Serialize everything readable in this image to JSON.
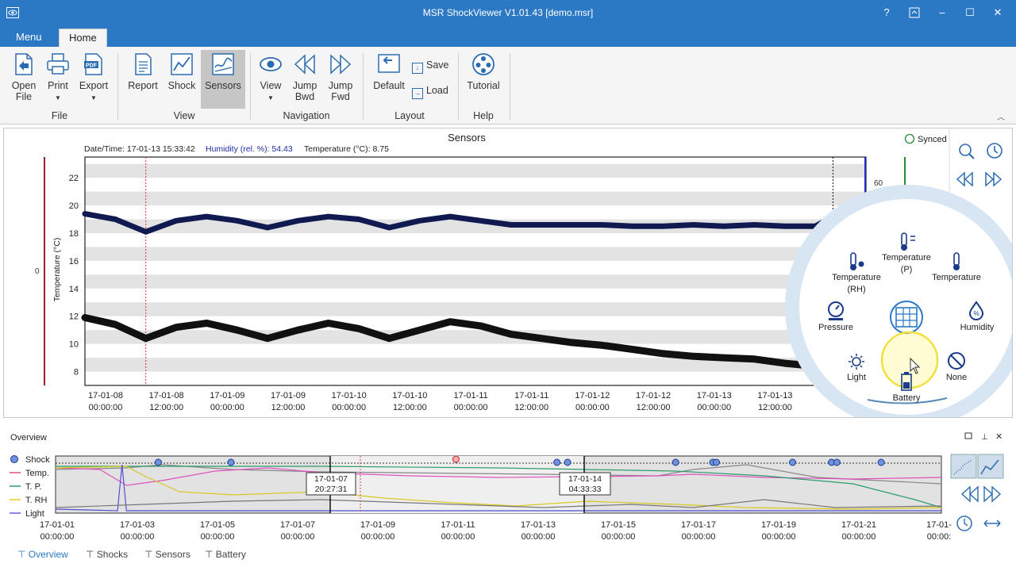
{
  "window": {
    "title": "MSR ShockViewer V1.01.43 [demo.msr]",
    "controls": {
      "help": "?",
      "minimize": "–",
      "maximize": "☐",
      "close": "✕"
    }
  },
  "ribbon": {
    "tabs": [
      "Menu",
      "Home"
    ],
    "active_tab": "Home",
    "buttons": {
      "open_line1": "Open",
      "open_line2": "File",
      "print": "Print",
      "export": "Export",
      "report": "Report",
      "shock": "Shock",
      "sensors": "Sensors",
      "view": "View",
      "jump_bwd_line1": "Jump",
      "jump_bwd_line2": "Bwd",
      "jump_fwd_line1": "Jump",
      "jump_fwd_line2": "Fwd",
      "default": "Default",
      "save": "Save",
      "load": "Load",
      "tutorial": "Tutorial"
    },
    "groups": [
      "File",
      "View",
      "Navigation",
      "Layout",
      "Help"
    ]
  },
  "sensors_chart": {
    "title": "Sensors",
    "synced": "Synced",
    "readout_prefix": "Date/Time: 17-01-13 15:33:42",
    "readout_humidity": "Humidity (rel. %): 54.43",
    "readout_temperature": "Temperature (°C): 8.75",
    "ylabel": "Temperature (°C)",
    "left_axis_zero": "0",
    "right_axis_label": "60",
    "yticks": [
      "22",
      "20",
      "18",
      "16",
      "14",
      "12",
      "10",
      "8"
    ],
    "xticks_dates": [
      "17-01-08",
      "17-01-08",
      "17-01-09",
      "17-01-09",
      "17-01-10",
      "17-01-10",
      "17-01-11",
      "17-01-11",
      "17-01-12",
      "17-01-12",
      "17-01-13",
      "17-01-13"
    ],
    "xticks_times": [
      "00:00:00",
      "12:00:00",
      "00:00:00",
      "12:00:00",
      "00:00:00",
      "12:00:00",
      "00:00:00",
      "12:00:00",
      "00:00:00",
      "12:00:00",
      "00:00:00",
      "12:00:00"
    ]
  },
  "chart_data": {
    "type": "line",
    "ylabel": "Temperature (°C)",
    "ylim": [
      7,
      23.5
    ],
    "x_unit": "hours since 17-01-08 00:00:00",
    "series": [
      {
        "x": [
          0,
          6,
          12,
          18,
          24,
          30,
          36,
          42,
          48,
          54,
          60,
          66,
          72,
          78,
          84,
          90,
          96,
          102,
          108,
          114,
          120,
          126,
          132,
          138,
          144,
          148
        ],
        "values": [
          19.4,
          19.0,
          18.1,
          18.9,
          19.2,
          18.9,
          18.4,
          18.9,
          19.2,
          19.0,
          18.4,
          18.9,
          19.2,
          18.9,
          18.6,
          18.6,
          18.6,
          18.6,
          18.5,
          18.5,
          18.6,
          18.5,
          18.6,
          18.5,
          18.5,
          19.3
        ]
      },
      {
        "x": [
          0,
          6,
          12,
          18,
          24,
          30,
          36,
          42,
          48,
          54,
          60,
          66,
          72,
          78,
          84,
          90,
          96,
          102,
          108,
          114,
          120,
          126,
          132,
          138,
          144
        ],
        "values": [
          11.9,
          11.4,
          10.4,
          11.2,
          11.5,
          11.0,
          10.4,
          11.0,
          11.5,
          11.1,
          10.4,
          11.0,
          11.6,
          11.3,
          10.7,
          10.4,
          10.1,
          9.9,
          9.6,
          9.3,
          9.1,
          9.0,
          8.9,
          8.6,
          8.4
        ]
      }
    ],
    "cursor_x": 147.5,
    "marker_x": 12
  },
  "sensor_menu": {
    "items": {
      "temp_rh": "Temperature",
      "temp_rh_sub": "(RH)",
      "temp_p": "Temperature",
      "temp_p_sub": "(P)",
      "temperature": "Temperature",
      "pressure": "Pressure",
      "humidity": "Humidity",
      "light": "Light",
      "battery": "Battery",
      "none": "None"
    }
  },
  "overview": {
    "title": "Overview",
    "legend": [
      "Shock",
      "Temp.",
      "T. P.",
      "T. RH",
      "Light"
    ],
    "legend_colors": [
      "#4a6fd0",
      "#e05080",
      "#2a9d6a",
      "#e0d020",
      "#6060e0"
    ],
    "cursor_left_date": "17-01-07",
    "cursor_left_time": "20:27:31",
    "cursor_right_date": "17-01-14",
    "cursor_right_time": "04:33:33",
    "xticks_dates": [
      "17-01-01",
      "17-01-03",
      "17-01-05",
      "17-01-07",
      "17-01-09",
      "17-01-11",
      "17-01-13",
      "17-01-15",
      "17-01-17",
      "17-01-19",
      "17-01-21",
      "17-01-"
    ],
    "xticks_times": [
      "00:00:00",
      "00:00:00",
      "00:00:00",
      "00:00:00",
      "00:00:00",
      "00:00:00",
      "00:00:00",
      "00:00:00",
      "00:00:00",
      "00:00:00",
      "00:00:00",
      "00:00:"
    ]
  },
  "bottom_tabs": [
    "Overview",
    "Shocks",
    "Sensors",
    "Battery"
  ]
}
